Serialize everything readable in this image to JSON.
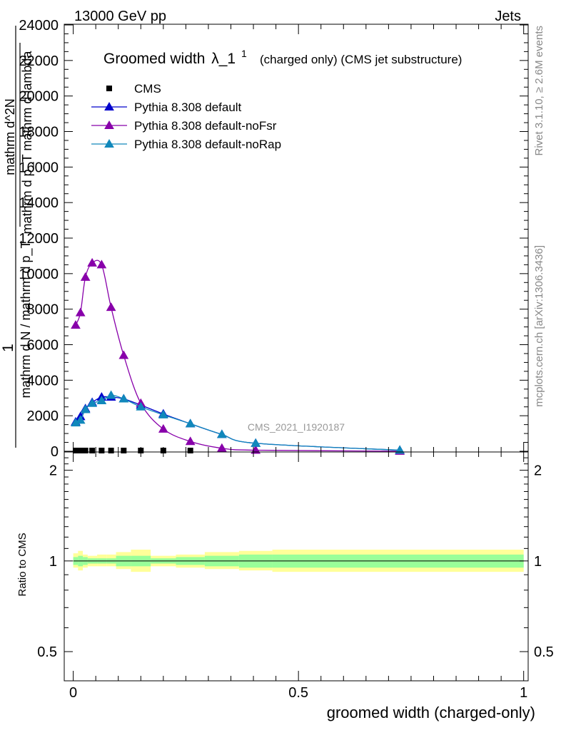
{
  "header": {
    "left": "13000 GeV pp",
    "right": "Jets"
  },
  "side_labels": {
    "rivet": "Rivet 3.1.10, ≥ 2.6M events",
    "mcplots": "mcplots.cern.ch [arXiv:1306.3436]"
  },
  "chart_data": [
    {
      "type": "line",
      "title": "Groomed width",
      "title_symbol": "λ_1",
      "title_superscript": "1",
      "subtitle": "(charged only) (CMS jet substructure)",
      "watermark": "CMS_2021_I1920187",
      "ylabel_lines": [
        "1",
        "mathrm d N / mathrm d p_T",
        "mathrm d^2N",
        "mathrm d p_T mathrm d lambda"
      ],
      "ylim": [
        0,
        24000
      ],
      "xlim": [
        -0.02,
        1.01
      ],
      "ytick_labels": [
        "0",
        "2000",
        "4000",
        "6000",
        "8000",
        "10000",
        "12000",
        "14000",
        "16000",
        "18000",
        "20000",
        "22000",
        "24000"
      ],
      "grid": false,
      "legend_position": "top-left",
      "series": [
        {
          "name": "CMS",
          "color": "#000000",
          "marker": "square",
          "x": [
            0.0053,
            0.016,
            0.027,
            0.042,
            0.063,
            0.084,
            0.112,
            0.15,
            0.2,
            0.26
          ],
          "values": [
            0,
            0,
            0,
            0,
            0,
            0,
            0,
            0,
            0,
            0
          ]
        },
        {
          "name": "Pythia 8.308 default",
          "color": "#0000cc",
          "marker": "triangle",
          "x": [
            0.0053,
            0.016,
            0.027,
            0.042,
            0.063,
            0.084,
            0.112,
            0.15,
            0.2,
            0.26,
            0.33,
            0.405,
            0.725
          ],
          "values": [
            1650,
            1950,
            2400,
            2750,
            3050,
            3050,
            2950,
            2600,
            2100,
            1550,
            950,
            450,
            60
          ]
        },
        {
          "name": "Pythia 8.308 default-noFsr",
          "color": "#8800aa",
          "marker": "triangle",
          "x": [
            0.0053,
            0.016,
            0.027,
            0.042,
            0.063,
            0.084,
            0.112,
            0.15,
            0.2,
            0.26,
            0.33,
            0.405,
            0.725
          ],
          "values": [
            7100,
            7800,
            9800,
            10600,
            10500,
            8100,
            5400,
            2700,
            1250,
            550,
            170,
            60,
            5
          ]
        },
        {
          "name": "Pythia 8.308 default-noRap",
          "color": "#1188bb",
          "marker": "triangle",
          "x": [
            0.0053,
            0.016,
            0.027,
            0.042,
            0.063,
            0.084,
            0.112,
            0.15,
            0.2,
            0.26,
            0.33,
            0.405,
            0.725
          ],
          "values": [
            1600,
            1750,
            2350,
            2700,
            2850,
            3150,
            2950,
            2500,
            2050,
            1550,
            950,
            450,
            60
          ]
        }
      ]
    },
    {
      "type": "area",
      "ylabel": "Ratio to CMS",
      "xlabel": "groomed width (charged-only)",
      "ylim": [
        0.4,
        2.3
      ],
      "log_scale_y": true,
      "xlim": [
        -0.02,
        1.01
      ],
      "ytick_labels": [
        "0.5",
        "1",
        "2"
      ],
      "xtick_labels": [
        "0",
        "0.5",
        "1"
      ],
      "reference_line": 1,
      "bands": {
        "edges": [
          0,
          0.0106,
          0.0213,
          0.032,
          0.053,
          0.074,
          0.095,
          0.128,
          0.172,
          0.228,
          0.292,
          0.368,
          0.442,
          1.0
        ],
        "yellow_low": [
          0.95,
          0.93,
          0.95,
          0.96,
          0.96,
          0.96,
          0.94,
          0.92,
          0.96,
          0.95,
          0.94,
          0.93,
          0.92
        ],
        "yellow_high": [
          1.06,
          1.08,
          1.05,
          1.04,
          1.05,
          1.05,
          1.07,
          1.09,
          1.04,
          1.05,
          1.07,
          1.08,
          1.09
        ],
        "green_low": [
          0.97,
          0.96,
          0.97,
          0.98,
          0.98,
          0.98,
          0.96,
          0.96,
          0.98,
          0.97,
          0.96,
          0.95,
          0.95
        ],
        "green_high": [
          1.03,
          1.04,
          1.03,
          1.02,
          1.02,
          1.02,
          1.04,
          1.04,
          1.02,
          1.03,
          1.04,
          1.05,
          1.05
        ]
      },
      "colors": {
        "yellow": "#ffff99",
        "green": "#99ff99"
      }
    }
  ]
}
